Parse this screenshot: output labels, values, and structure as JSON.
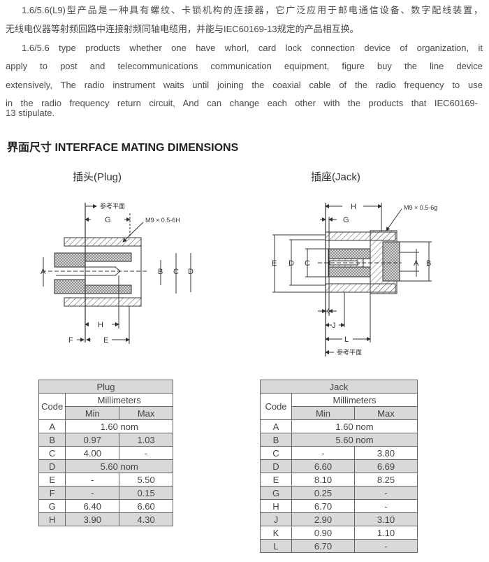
{
  "intro": {
    "cn_lines": [
      "1.6/5.6(L9)型产品是一种具有螺纹、卡锁机构的连接器，它广泛应用于邮电通信设备、数字配线装置，",
      "无线电仪器等射频回路中连接射频同轴电缆用，并能与IEC60169-13规定的产品相互换。"
    ],
    "en_lines": [
      "1.6/5.6 type products whether one have whorl, card lock connection device of organization, it",
      "apply to post and telecommunications communication equipment, figure buy the line device",
      "extensively, The radio instrument waits until joining the coaxial cable of the radio frequency to use",
      "in the radio frequency return circuit, And can change each other with the products that IEC60169-",
      "13 stipulate."
    ]
  },
  "heading": "界面尺寸  INTERFACE MATING DIMENSIONS",
  "plug": {
    "title": "插头(Plug)",
    "drawing": {
      "ref_plane": "参考平面",
      "thread": "M9 × 0.5-6H",
      "labels": {
        "A": "A",
        "B": "B",
        "C": "C",
        "D": "D",
        "E": "E",
        "F": "F",
        "G": "G",
        "H": "H"
      }
    },
    "table": {
      "title": "Plug",
      "code_header": "Code",
      "unit_header": "Millimeters",
      "min_header": "Min",
      "max_header": "Max",
      "rows": [
        {
          "code": "A",
          "nom": "1.60 nom"
        },
        {
          "code": "B",
          "min": "0.97",
          "max": "1.03"
        },
        {
          "code": "C",
          "min": "4.00",
          "max": "-"
        },
        {
          "code": "D",
          "nom": "5.60 nom"
        },
        {
          "code": "E",
          "min": "-",
          "max": "5.50"
        },
        {
          "code": "F",
          "min": "-",
          "max": "0.15"
        },
        {
          "code": "G",
          "min": "6.40",
          "max": "6.60"
        },
        {
          "code": "H",
          "min": "3.90",
          "max": "4.30"
        }
      ]
    }
  },
  "jack": {
    "title": "插座(Jack)",
    "drawing": {
      "ref_plane": "参考平面",
      "thread": "M9 × 0.5-6g",
      "labels": {
        "A": "A",
        "B": "B",
        "C": "C",
        "D": "D",
        "E": "E",
        "G": "G",
        "H": "H",
        "J": "J",
        "K": "K",
        "L": "L"
      }
    },
    "table": {
      "title": "Jack",
      "code_header": "Code",
      "unit_header": "Millimeters",
      "min_header": "Min",
      "max_header": "Max",
      "rows": [
        {
          "code": "A",
          "nom": "1.60 nom"
        },
        {
          "code": "B",
          "nom": "5.60 nom"
        },
        {
          "code": "C",
          "min": "-",
          "max": "3.80"
        },
        {
          "code": "D",
          "min": "6.60",
          "max": "6.69"
        },
        {
          "code": "E",
          "min": "8.10",
          "max": "8.25"
        },
        {
          "code": "G",
          "min": "0.25",
          "max": "-"
        },
        {
          "code": "H",
          "min": "6.70",
          "max": "-"
        },
        {
          "code": "J",
          "min": "2.90",
          "max": "3.10"
        },
        {
          "code": "K",
          "min": "0.90",
          "max": "1.10"
        },
        {
          "code": "L",
          "min": "6.70",
          "max": "-"
        }
      ]
    }
  }
}
